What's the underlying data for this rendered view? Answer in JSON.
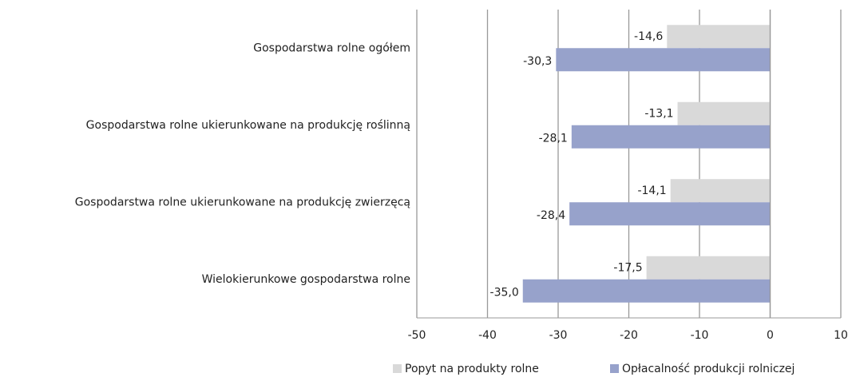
{
  "chart_data": {
    "type": "bar",
    "orientation": "horizontal",
    "categories": [
      "Gospodarstwa rolne ogółem",
      "Gospodarstwa rolne ukierunkowane na produkcję roślinną",
      "Gospodarstwa rolne ukierunkowane na produkcję zwierzęcą",
      "Wielokierunkowe gospodarstwa rolne"
    ],
    "series": [
      {
        "name": "Popyt na produkty rolne",
        "color": "#d9d9d9",
        "values": [
          -14.6,
          -13.1,
          -14.1,
          -17.5
        ],
        "value_labels": [
          "-14,6",
          "-13,1",
          "-14,1",
          "-17,5"
        ]
      },
      {
        "name": "Opłacalność produkcji rolniczej",
        "color": "#97a2cb",
        "values": [
          -30.3,
          -28.1,
          -28.4,
          -35.0
        ],
        "value_labels": [
          "-30,3",
          "-28,1",
          "-28,4",
          "-35,0"
        ]
      }
    ],
    "xlim": [
      -50,
      10
    ],
    "xticks": [
      -50,
      -40,
      -30,
      -20,
      -10,
      0,
      10
    ],
    "grid": true,
    "legend": "bottom"
  }
}
